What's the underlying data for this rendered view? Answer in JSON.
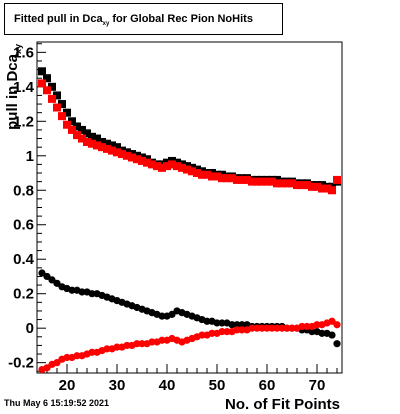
{
  "title": {
    "text": "Fitted pull in Dca",
    "subscript": "xy",
    "suffix": " for Global Rec Pion NoHits"
  },
  "timestamp": "Thu May  6 15:19:52 2021",
  "chart_data": {
    "type": "scatter",
    "xlabel": "No. of Fit Points",
    "ylabel": "pull in Dca",
    "ylabel_sub": "xy",
    "xlim": [
      14,
      75
    ],
    "ylim": [
      -0.26,
      1.66
    ],
    "x_ticks": [
      20,
      30,
      40,
      50,
      60,
      70
    ],
    "x_tick_labels": [
      "20",
      "30",
      "40",
      "50",
      "60",
      "70"
    ],
    "y_ticks": [
      -0.2,
      0,
      0.2,
      0.4,
      0.6,
      0.8,
      1,
      1.2,
      1.4,
      1.6
    ],
    "y_tick_labels": [
      "-0.2",
      "0",
      "0.2",
      "0.4",
      "0.6",
      "0.8",
      "1",
      "1.2",
      "1.4",
      "1.6"
    ],
    "grid": false,
    "series": [
      {
        "color": "#000000",
        "marker": "square",
        "x": [
          15,
          16,
          17,
          18,
          19,
          20,
          21,
          22,
          23,
          24,
          25,
          26,
          27,
          28,
          29,
          30,
          31,
          32,
          33,
          34,
          35,
          36,
          37,
          38,
          39,
          40,
          41,
          42,
          43,
          44,
          45,
          46,
          47,
          48,
          49,
          50,
          51,
          52,
          53,
          54,
          55,
          56,
          57,
          58,
          59,
          60,
          61,
          62,
          63,
          64,
          65,
          66,
          67,
          68,
          69,
          70,
          71,
          72,
          73,
          74
        ],
        "y": [
          1.49,
          1.45,
          1.4,
          1.35,
          1.3,
          1.25,
          1.2,
          1.17,
          1.15,
          1.13,
          1.11,
          1.1,
          1.08,
          1.07,
          1.06,
          1.05,
          1.03,
          1.02,
          1.01,
          1.0,
          0.99,
          0.98,
          0.96,
          0.95,
          0.95,
          0.96,
          0.97,
          0.96,
          0.95,
          0.94,
          0.93,
          0.92,
          0.91,
          0.9,
          0.9,
          0.89,
          0.89,
          0.88,
          0.88,
          0.87,
          0.87,
          0.87,
          0.86,
          0.86,
          0.86,
          0.86,
          0.86,
          0.86,
          0.85,
          0.85,
          0.85,
          0.84,
          0.84,
          0.84,
          0.83,
          0.83,
          0.83,
          0.82,
          0.82,
          0.85
        ]
      },
      {
        "color": "#ff0000",
        "marker": "square",
        "x": [
          15,
          16,
          17,
          18,
          19,
          20,
          21,
          22,
          23,
          24,
          25,
          26,
          27,
          28,
          29,
          30,
          31,
          32,
          33,
          34,
          35,
          36,
          37,
          38,
          39,
          40,
          41,
          42,
          43,
          44,
          45,
          46,
          47,
          48,
          49,
          50,
          51,
          52,
          53,
          54,
          55,
          56,
          57,
          58,
          59,
          60,
          61,
          62,
          63,
          64,
          65,
          66,
          67,
          68,
          69,
          70,
          71,
          72,
          73,
          74
        ],
        "y": [
          1.42,
          1.38,
          1.33,
          1.28,
          1.23,
          1.18,
          1.15,
          1.12,
          1.1,
          1.08,
          1.07,
          1.06,
          1.05,
          1.04,
          1.03,
          1.02,
          1.01,
          1.0,
          0.99,
          0.98,
          0.97,
          0.96,
          0.95,
          0.94,
          0.93,
          0.94,
          0.95,
          0.94,
          0.93,
          0.92,
          0.91,
          0.9,
          0.89,
          0.89,
          0.88,
          0.88,
          0.87,
          0.87,
          0.87,
          0.86,
          0.86,
          0.86,
          0.85,
          0.85,
          0.85,
          0.85,
          0.85,
          0.84,
          0.84,
          0.84,
          0.84,
          0.83,
          0.83,
          0.83,
          0.82,
          0.82,
          0.81,
          0.81,
          0.8,
          0.86
        ]
      },
      {
        "color": "#000000",
        "marker": "circle",
        "x": [
          15,
          16,
          17,
          18,
          19,
          20,
          21,
          22,
          23,
          24,
          25,
          26,
          27,
          28,
          29,
          30,
          31,
          32,
          33,
          34,
          35,
          36,
          37,
          38,
          39,
          40,
          41,
          42,
          43,
          44,
          45,
          46,
          47,
          48,
          49,
          50,
          51,
          52,
          53,
          54,
          55,
          56,
          57,
          58,
          59,
          60,
          61,
          62,
          63,
          64,
          65,
          66,
          67,
          68,
          69,
          70,
          71,
          72,
          73,
          74
        ],
        "y": [
          0.32,
          0.3,
          0.28,
          0.26,
          0.24,
          0.23,
          0.22,
          0.22,
          0.21,
          0.21,
          0.2,
          0.2,
          0.19,
          0.18,
          0.17,
          0.16,
          0.15,
          0.14,
          0.13,
          0.12,
          0.11,
          0.1,
          0.09,
          0.08,
          0.07,
          0.07,
          0.08,
          0.1,
          0.09,
          0.08,
          0.07,
          0.06,
          0.05,
          0.04,
          0.04,
          0.03,
          0.03,
          0.03,
          0.02,
          0.02,
          0.02,
          0.02,
          0.01,
          0.01,
          0.01,
          0.01,
          0.01,
          0.01,
          0.01,
          0.0,
          0.0,
          0.0,
          -0.01,
          -0.01,
          -0.02,
          -0.02,
          -0.03,
          -0.03,
          -0.04,
          -0.09
        ]
      },
      {
        "color": "#ff0000",
        "marker": "circle",
        "x": [
          15,
          16,
          17,
          18,
          19,
          20,
          21,
          22,
          23,
          24,
          25,
          26,
          27,
          28,
          29,
          30,
          31,
          32,
          33,
          34,
          35,
          36,
          37,
          38,
          39,
          40,
          41,
          42,
          43,
          44,
          45,
          46,
          47,
          48,
          49,
          50,
          51,
          52,
          53,
          54,
          55,
          56,
          57,
          58,
          59,
          60,
          61,
          62,
          63,
          64,
          65,
          66,
          67,
          68,
          69,
          70,
          71,
          72,
          73,
          74
        ],
        "y": [
          -0.24,
          -0.23,
          -0.21,
          -0.2,
          -0.18,
          -0.17,
          -0.17,
          -0.16,
          -0.16,
          -0.15,
          -0.14,
          -0.14,
          -0.13,
          -0.12,
          -0.12,
          -0.11,
          -0.11,
          -0.1,
          -0.1,
          -0.09,
          -0.09,
          -0.09,
          -0.08,
          -0.08,
          -0.07,
          -0.07,
          -0.06,
          -0.07,
          -0.08,
          -0.07,
          -0.06,
          -0.05,
          -0.04,
          -0.04,
          -0.03,
          -0.03,
          -0.02,
          -0.02,
          -0.02,
          -0.01,
          -0.01,
          -0.01,
          0.0,
          0.0,
          0.0,
          0.0,
          0.0,
          0.0,
          0.0,
          0.0,
          0.0,
          0.0,
          0.01,
          0.01,
          0.01,
          0.02,
          0.02,
          0.03,
          0.04,
          0.02
        ]
      }
    ]
  }
}
